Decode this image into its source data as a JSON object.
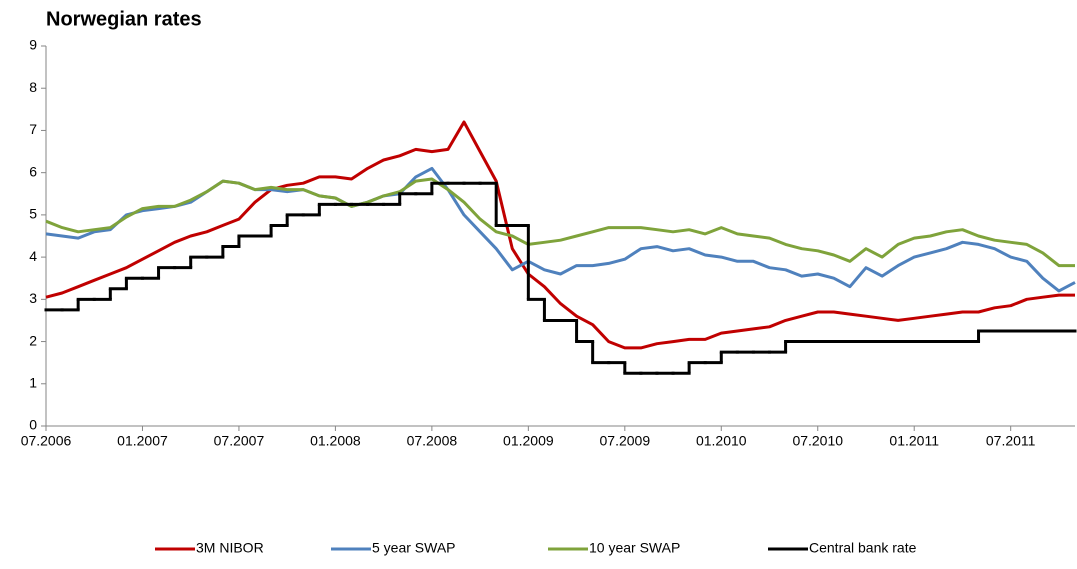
{
  "chart_data": {
    "type": "line",
    "title": "Norwegian rates",
    "x": [
      "07.2006",
      "08.2006",
      "09.2006",
      "10.2006",
      "11.2006",
      "12.2006",
      "01.2007",
      "02.2007",
      "03.2007",
      "04.2007",
      "05.2007",
      "06.2007",
      "07.2007",
      "08.2007",
      "09.2007",
      "10.2007",
      "11.2007",
      "12.2007",
      "01.2008",
      "02.2008",
      "03.2008",
      "04.2008",
      "05.2008",
      "06.2008",
      "07.2008",
      "08.2008",
      "09.2008",
      "10.2008",
      "11.2008",
      "12.2008",
      "01.2009",
      "02.2009",
      "03.2009",
      "04.2009",
      "05.2009",
      "06.2009",
      "07.2009",
      "08.2009",
      "09.2009",
      "10.2009",
      "11.2009",
      "12.2009",
      "01.2010",
      "02.2010",
      "03.2010",
      "04.2010",
      "05.2010",
      "06.2010",
      "07.2010",
      "08.2010",
      "09.2010",
      "10.2010",
      "11.2010",
      "12.2010",
      "01.2011",
      "02.2011",
      "03.2011",
      "04.2011",
      "05.2011",
      "06.2011",
      "07.2011",
      "08.2011",
      "09.2011",
      "10.2011",
      "11.2011"
    ],
    "xlim": [
      "07.2006",
      "11.2011"
    ],
    "xticks": [
      "07.2006",
      "01.2007",
      "07.2007",
      "01.2008",
      "07.2008",
      "01.2009",
      "07.2009",
      "01.2010",
      "07.2010",
      "01.2011",
      "07.2011"
    ],
    "ylim": [
      0,
      9
    ],
    "yticks": [
      0,
      1,
      2,
      3,
      4,
      5,
      6,
      7,
      8,
      9
    ],
    "grid": false,
    "legend": "bottom",
    "series": [
      {
        "name": "3M NIBOR",
        "color": "#c00000",
        "values": [
          3.05,
          3.15,
          3.3,
          3.45,
          3.6,
          3.75,
          3.95,
          4.15,
          4.35,
          4.5,
          4.6,
          4.75,
          4.9,
          5.3,
          5.6,
          5.7,
          5.75,
          5.9,
          5.9,
          5.85,
          6.1,
          6.3,
          6.4,
          6.55,
          6.5,
          6.55,
          7.2,
          6.5,
          5.8,
          4.2,
          3.6,
          3.3,
          2.9,
          2.6,
          2.4,
          2.0,
          1.85,
          1.85,
          1.95,
          2.0,
          2.05,
          2.05,
          2.2,
          2.25,
          2.3,
          2.35,
          2.5,
          2.6,
          2.7,
          2.7,
          2.65,
          2.6,
          2.55,
          2.5,
          2.55,
          2.6,
          2.65,
          2.7,
          2.7,
          2.8,
          2.85,
          3.0,
          3.05,
          3.1,
          3.1
        ]
      },
      {
        "name": "5 year SWAP",
        "color": "#4f81bd",
        "values": [
          4.55,
          4.5,
          4.45,
          4.6,
          4.65,
          5.0,
          5.1,
          5.15,
          5.2,
          5.3,
          5.55,
          5.8,
          5.75,
          5.6,
          5.6,
          5.55,
          5.6,
          5.45,
          5.4,
          5.2,
          5.3,
          5.45,
          5.5,
          5.9,
          6.1,
          5.6,
          5.0,
          4.6,
          4.2,
          3.7,
          3.9,
          3.7,
          3.6,
          3.8,
          3.8,
          3.85,
          3.95,
          4.2,
          4.25,
          4.15,
          4.2,
          4.05,
          4.0,
          3.9,
          3.9,
          3.75,
          3.7,
          3.55,
          3.6,
          3.5,
          3.3,
          3.75,
          3.55,
          3.8,
          4.0,
          4.1,
          4.2,
          4.35,
          4.3,
          4.2,
          4.0,
          3.9,
          3.5,
          3.2,
          3.4
        ]
      },
      {
        "name": "10 year SWAP",
        "color": "#7fa33b",
        "values": [
          4.85,
          4.7,
          4.6,
          4.65,
          4.7,
          4.95,
          5.15,
          5.2,
          5.2,
          5.35,
          5.55,
          5.8,
          5.75,
          5.6,
          5.65,
          5.6,
          5.6,
          5.45,
          5.4,
          5.2,
          5.3,
          5.45,
          5.55,
          5.8,
          5.85,
          5.6,
          5.3,
          4.9,
          4.6,
          4.5,
          4.3,
          4.35,
          4.4,
          4.5,
          4.6,
          4.7,
          4.7,
          4.7,
          4.65,
          4.6,
          4.65,
          4.55,
          4.7,
          4.55,
          4.5,
          4.45,
          4.3,
          4.2,
          4.15,
          4.05,
          3.9,
          4.2,
          4.0,
          4.3,
          4.45,
          4.5,
          4.6,
          4.65,
          4.5,
          4.4,
          4.35,
          4.3,
          4.1,
          3.8,
          3.8
        ]
      },
      {
        "name": "Central bank rate",
        "color": "#000000",
        "step": true,
        "values": [
          2.75,
          2.75,
          3.0,
          3.0,
          3.25,
          3.5,
          3.5,
          3.75,
          3.75,
          4.0,
          4.0,
          4.25,
          4.5,
          4.5,
          4.75,
          5.0,
          5.0,
          5.25,
          5.25,
          5.25,
          5.25,
          5.25,
          5.5,
          5.5,
          5.75,
          5.75,
          5.75,
          5.75,
          4.75,
          4.75,
          3.0,
          2.5,
          2.5,
          2.0,
          1.5,
          1.5,
          1.25,
          1.25,
          1.25,
          1.25,
          1.5,
          1.5,
          1.75,
          1.75,
          1.75,
          1.75,
          2.0,
          2.0,
          2.0,
          2.0,
          2.0,
          2.0,
          2.0,
          2.0,
          2.0,
          2.0,
          2.0,
          2.0,
          2.25,
          2.25,
          2.25,
          2.25,
          2.25,
          2.25,
          2.25
        ]
      }
    ]
  }
}
